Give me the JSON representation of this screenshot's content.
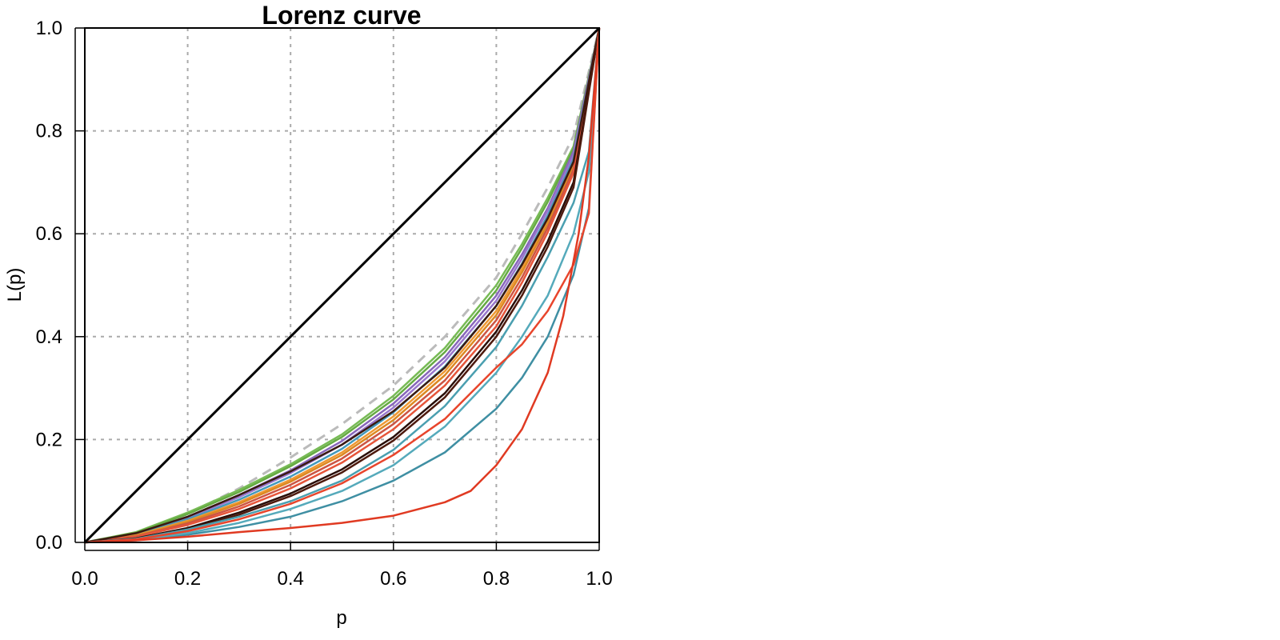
{
  "chart_data": {
    "type": "line",
    "title": "Lorenz curve",
    "xlabel": "p",
    "ylabel": "L(p)",
    "xlim": [
      0,
      1
    ],
    "ylim": [
      0,
      1
    ],
    "x_ticks": [
      "0.0",
      "0.2",
      "0.4",
      "0.6",
      "0.8",
      "1.0"
    ],
    "y_ticks": [
      "0.0",
      "0.2",
      "0.4",
      "0.6",
      "0.8",
      "1.0"
    ],
    "grid": true,
    "reference_lines": [
      {
        "kind": "equality",
        "x": [
          0,
          1
        ],
        "y": [
          0,
          1
        ],
        "color": "#000000",
        "style": "solid"
      }
    ],
    "series": [
      {
        "color": "#bbbbbb",
        "style": "dashed",
        "x": [
          0,
          0.1,
          0.2,
          0.3,
          0.4,
          0.5,
          0.6,
          0.7,
          0.8,
          0.85,
          0.9,
          0.95,
          1.0
        ],
        "y": [
          0,
          0.018,
          0.055,
          0.105,
          0.165,
          0.23,
          0.305,
          0.4,
          0.515,
          0.6,
          0.69,
          0.79,
          1.0
        ]
      },
      {
        "color": "#77bb55",
        "style": "solid",
        "x": [
          0,
          0.1,
          0.2,
          0.3,
          0.4,
          0.5,
          0.6,
          0.7,
          0.8,
          0.85,
          0.9,
          0.95,
          1.0
        ],
        "y": [
          0,
          0.02,
          0.058,
          0.102,
          0.152,
          0.21,
          0.285,
          0.378,
          0.5,
          0.58,
          0.67,
          0.77,
          1.0
        ]
      },
      {
        "color": "#66aa44",
        "style": "solid",
        "x": [
          0,
          0.1,
          0.2,
          0.3,
          0.4,
          0.5,
          0.6,
          0.7,
          0.8,
          0.85,
          0.9,
          0.95,
          1.0
        ],
        "y": [
          0,
          0.019,
          0.055,
          0.098,
          0.148,
          0.205,
          0.278,
          0.37,
          0.49,
          0.572,
          0.662,
          0.765,
          1.0
        ]
      },
      {
        "color": "#8866bb",
        "style": "solid",
        "x": [
          0,
          0.1,
          0.2,
          0.3,
          0.4,
          0.5,
          0.6,
          0.7,
          0.8,
          0.85,
          0.9,
          0.95,
          1.0
        ],
        "y": [
          0,
          0.017,
          0.05,
          0.092,
          0.14,
          0.197,
          0.27,
          0.36,
          0.48,
          0.56,
          0.65,
          0.76,
          1.0
        ]
      },
      {
        "color": "#9977cc",
        "style": "solid",
        "x": [
          0,
          0.1,
          0.2,
          0.3,
          0.4,
          0.5,
          0.6,
          0.7,
          0.8,
          0.85,
          0.9,
          0.95,
          1.0
        ],
        "y": [
          0,
          0.016,
          0.048,
          0.088,
          0.135,
          0.19,
          0.262,
          0.352,
          0.47,
          0.552,
          0.645,
          0.752,
          1.0
        ]
      },
      {
        "color": "#4499bb",
        "style": "solid",
        "x": [
          0,
          0.1,
          0.2,
          0.3,
          0.4,
          0.5,
          0.6,
          0.7,
          0.8,
          0.85,
          0.9,
          0.95,
          1.0
        ],
        "y": [
          0,
          0.015,
          0.045,
          0.083,
          0.128,
          0.182,
          0.253,
          0.342,
          0.46,
          0.542,
          0.636,
          0.745,
          1.0
        ]
      },
      {
        "color": "#ee9933",
        "style": "solid",
        "x": [
          0,
          0.1,
          0.2,
          0.3,
          0.4,
          0.5,
          0.6,
          0.7,
          0.8,
          0.85,
          0.9,
          0.95,
          1.0
        ],
        "y": [
          0,
          0.014,
          0.042,
          0.078,
          0.122,
          0.175,
          0.245,
          0.333,
          0.45,
          0.532,
          0.628,
          0.738,
          1.0
        ]
      },
      {
        "color": "#dd8822",
        "style": "solid",
        "x": [
          0,
          0.1,
          0.2,
          0.3,
          0.4,
          0.5,
          0.6,
          0.7,
          0.8,
          0.85,
          0.9,
          0.95,
          1.0
        ],
        "y": [
          0,
          0.013,
          0.04,
          0.075,
          0.118,
          0.17,
          0.238,
          0.325,
          0.442,
          0.525,
          0.62,
          0.732,
          1.0
        ]
      },
      {
        "color": "#cc5544",
        "style": "solid",
        "x": [
          0,
          0.1,
          0.2,
          0.3,
          0.4,
          0.5,
          0.6,
          0.7,
          0.8,
          0.85,
          0.9,
          0.95,
          1.0
        ],
        "y": [
          0,
          0.012,
          0.037,
          0.07,
          0.112,
          0.163,
          0.23,
          0.315,
          0.432,
          0.515,
          0.612,
          0.725,
          1.0
        ]
      },
      {
        "color": "#e6553a",
        "style": "solid",
        "x": [
          0,
          0.1,
          0.2,
          0.3,
          0.4,
          0.5,
          0.6,
          0.7,
          0.8,
          0.85,
          0.9,
          0.95,
          1.0
        ],
        "y": [
          0,
          0.011,
          0.034,
          0.065,
          0.105,
          0.155,
          0.22,
          0.305,
          0.42,
          0.505,
          0.603,
          0.718,
          1.0
        ]
      },
      {
        "color": "#3a1a10",
        "style": "solid",
        "x": [
          0,
          0.1,
          0.2,
          0.3,
          0.4,
          0.5,
          0.6,
          0.7,
          0.8,
          0.85,
          0.9,
          0.95,
          1.0
        ],
        "y": [
          0,
          0.018,
          0.05,
          0.092,
          0.138,
          0.19,
          0.255,
          0.34,
          0.46,
          0.54,
          0.63,
          0.74,
          1.0
        ]
      },
      {
        "color": "#2a0e08",
        "style": "solid",
        "x": [
          0,
          0.1,
          0.2,
          0.3,
          0.4,
          0.5,
          0.6,
          0.7,
          0.8,
          0.85,
          0.9,
          0.95,
          1.0
        ],
        "y": [
          0,
          0.008,
          0.028,
          0.058,
          0.095,
          0.142,
          0.205,
          0.29,
          0.41,
          0.49,
          0.585,
          0.7,
          1.0
        ]
      },
      {
        "color": "#4d1a0e",
        "style": "solid",
        "x": [
          0,
          0.1,
          0.2,
          0.3,
          0.4,
          0.5,
          0.6,
          0.7,
          0.8,
          0.85,
          0.9,
          0.95,
          1.0
        ],
        "y": [
          0,
          0.007,
          0.025,
          0.054,
          0.09,
          0.136,
          0.198,
          0.282,
          0.4,
          0.48,
          0.575,
          0.69,
          1.0
        ]
      },
      {
        "color": "#4a9fb0",
        "style": "solid",
        "x": [
          0,
          0.1,
          0.2,
          0.3,
          0.4,
          0.5,
          0.6,
          0.7,
          0.8,
          0.85,
          0.9,
          0.95,
          0.98,
          1.0
        ],
        "y": [
          0,
          0.007,
          0.025,
          0.05,
          0.08,
          0.12,
          0.18,
          0.265,
          0.38,
          0.46,
          0.555,
          0.66,
          0.76,
          1.0
        ]
      },
      {
        "color": "#3f8fa3",
        "style": "solid",
        "x": [
          0,
          0.1,
          0.2,
          0.3,
          0.4,
          0.5,
          0.6,
          0.7,
          0.8,
          0.85,
          0.9,
          0.95,
          0.98,
          1.0
        ],
        "y": [
          0,
          0.004,
          0.015,
          0.03,
          0.05,
          0.08,
          0.12,
          0.175,
          0.26,
          0.32,
          0.4,
          0.52,
          0.65,
          1.0
        ]
      },
      {
        "color": "#55aabb",
        "style": "solid",
        "x": [
          0,
          0.1,
          0.2,
          0.3,
          0.4,
          0.5,
          0.6,
          0.7,
          0.8,
          0.85,
          0.9,
          0.95,
          0.98,
          1.0
        ],
        "y": [
          0,
          0.005,
          0.018,
          0.038,
          0.065,
          0.1,
          0.15,
          0.225,
          0.33,
          0.4,
          0.48,
          0.6,
          0.72,
          1.0
        ]
      },
      {
        "color": "#e8452c",
        "style": "solid",
        "x": [
          0,
          0.1,
          0.2,
          0.3,
          0.4,
          0.5,
          0.6,
          0.7,
          0.8,
          0.85,
          0.9,
          0.95,
          0.98,
          1.0
        ],
        "y": [
          0,
          0.006,
          0.022,
          0.045,
          0.075,
          0.115,
          0.17,
          0.24,
          0.34,
          0.385,
          0.45,
          0.54,
          0.64,
          1.0
        ]
      },
      {
        "color": "#e03a22",
        "style": "solid",
        "x": [
          0,
          0.1,
          0.2,
          0.3,
          0.4,
          0.5,
          0.6,
          0.7,
          0.75,
          0.8,
          0.85,
          0.9,
          0.93,
          0.96,
          0.98,
          1.0
        ],
        "y": [
          0,
          0.004,
          0.011,
          0.02,
          0.028,
          0.038,
          0.052,
          0.078,
          0.1,
          0.15,
          0.22,
          0.33,
          0.44,
          0.6,
          0.75,
          1.0
        ]
      }
    ]
  }
}
